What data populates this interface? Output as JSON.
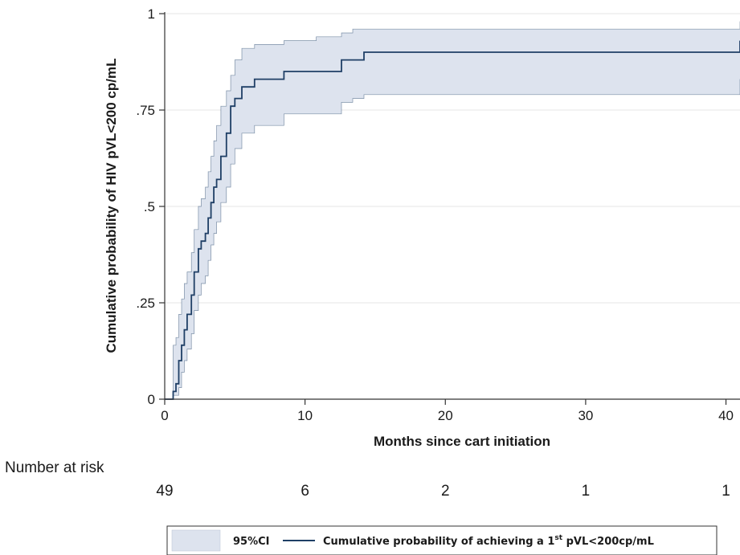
{
  "chart_data": {
    "type": "line",
    "title": "",
    "xlabel": "Months since cart initiation",
    "ylabel": "Cumulative probability of HIV pVL<200 cp/mL",
    "xlim": [
      0,
      41
    ],
    "ylim": [
      0,
      1
    ],
    "xticks": [
      0,
      10,
      20,
      30,
      40
    ],
    "xtick_labels": [
      "0",
      "10",
      "20",
      "30",
      "40"
    ],
    "yticks": [
      0,
      0.25,
      0.5,
      0.75,
      1
    ],
    "ytick_labels": [
      "0",
      ".25",
      ".5",
      ".75",
      "1"
    ],
    "grid": "horizontal",
    "series": [
      {
        "name": "Cumulative probability of achieving a 1st pVL<200cp/mL",
        "kind": "step",
        "color": "#1f3f66",
        "x": [
          0,
          0.6,
          0.8,
          1.0,
          1.2,
          1.4,
          1.6,
          1.9,
          2.1,
          2.4,
          2.6,
          2.9,
          3.1,
          3.3,
          3.5,
          3.7,
          4.0,
          4.4,
          4.7,
          5.0,
          5.5,
          6.4,
          8.5,
          10.8,
          12.6,
          13.4,
          14.2,
          41
        ],
        "y": [
          0,
          0.02,
          0.04,
          0.1,
          0.14,
          0.18,
          0.22,
          0.27,
          0.33,
          0.39,
          0.41,
          0.43,
          0.47,
          0.51,
          0.55,
          0.57,
          0.63,
          0.69,
          0.76,
          0.78,
          0.81,
          0.83,
          0.85,
          0.85,
          0.88,
          0.88,
          0.9,
          0.93
        ]
      },
      {
        "name": "95%CI",
        "kind": "band",
        "color": "#dde3ee",
        "x": [
          0,
          0.6,
          0.8,
          1.0,
          1.2,
          1.4,
          1.6,
          1.9,
          2.1,
          2.4,
          2.6,
          2.9,
          3.1,
          3.3,
          3.5,
          3.7,
          4.0,
          4.4,
          4.7,
          5.0,
          5.5,
          6.4,
          8.5,
          10.8,
          12.6,
          13.4,
          14.2,
          41
        ],
        "lower": [
          0,
          0.01,
          0.01,
          0.03,
          0.07,
          0.1,
          0.13,
          0.17,
          0.23,
          0.27,
          0.3,
          0.32,
          0.36,
          0.4,
          0.43,
          0.46,
          0.51,
          0.55,
          0.61,
          0.65,
          0.69,
          0.71,
          0.74,
          0.74,
          0.77,
          0.78,
          0.79,
          0.83
        ],
        "upper": [
          0,
          0.14,
          0.16,
          0.22,
          0.26,
          0.3,
          0.33,
          0.38,
          0.44,
          0.5,
          0.52,
          0.55,
          0.59,
          0.63,
          0.67,
          0.71,
          0.76,
          0.8,
          0.84,
          0.88,
          0.91,
          0.92,
          0.93,
          0.94,
          0.95,
          0.96,
          0.96,
          0.98
        ]
      }
    ],
    "risk_table": {
      "label": "Number at risk",
      "times": [
        0,
        10,
        20,
        30,
        40
      ],
      "values": [
        "49",
        "6",
        "2",
        "1",
        "1"
      ]
    },
    "legend": {
      "placement": "bottom",
      "items": [
        {
          "label": "95%CI",
          "swatch": "band"
        },
        {
          "label": "Cumulative probability of achieving a 1",
          "sup": "st",
          "suffix": " pVL<200cp/mL",
          "swatch": "line"
        }
      ]
    },
    "colors": {
      "line": "#1f3f66",
      "band": "#dde3ee",
      "band_edge": "#1f3f66",
      "grid": "#e4e4e4",
      "axis": "#333333"
    }
  }
}
